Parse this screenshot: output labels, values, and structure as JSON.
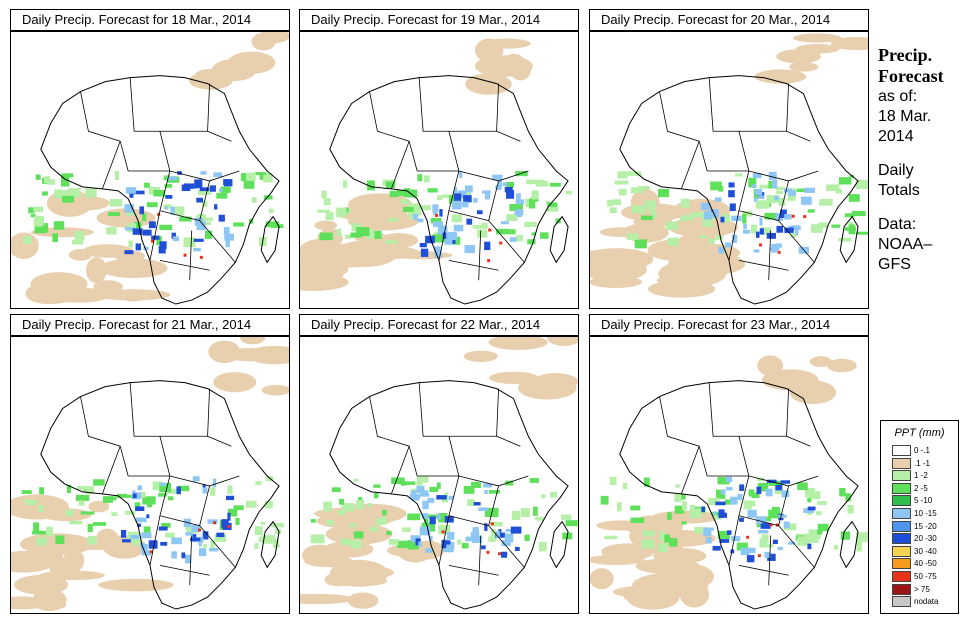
{
  "panels": [
    {
      "title": "Daily Precip. Forecast for  18 Mar., 2014",
      "variant": 0
    },
    {
      "title": "Daily Precip. Forecast for  19 Mar., 2014",
      "variant": 1
    },
    {
      "title": "Daily Precip. Forecast for  20 Mar., 2014",
      "variant": 2
    },
    {
      "title": "Daily Precip. Forecast for  21 Mar., 2014",
      "variant": 3
    },
    {
      "title": "Daily Precip. Forecast for  22 Mar., 2014",
      "variant": 4
    },
    {
      "title": "Daily Precip. Forecast for  23 Mar., 2014",
      "variant": 5
    }
  ],
  "sidebar": {
    "heading_line1": "Precip.",
    "heading_line2": "Forecast",
    "asof_line1": "as of:",
    "asof_line2": "18 Mar.",
    "asof_line3": "2014",
    "totals_line1": "Daily",
    "totals_line2": "Totals",
    "data_line1": "Data:",
    "data_line2": "NOAA–",
    "data_line3": "GFS"
  },
  "legend": {
    "title": "PPT (mm)",
    "items": [
      {
        "label": "0 -.1",
        "color": "#ffffff"
      },
      {
        "label": ".1 -1",
        "color": "#e8cfae"
      },
      {
        "label": "1 -2",
        "color": "#b6f0a8"
      },
      {
        "label": "2 -5",
        "color": "#5fe05a"
      },
      {
        "label": "5 -10",
        "color": "#2fbe4a"
      },
      {
        "label": "10 -15",
        "color": "#8ec7f5"
      },
      {
        "label": "15 -20",
        "color": "#4f95ee"
      },
      {
        "label": "20 -30",
        "color": "#1e4fd6"
      },
      {
        "label": "30 -40",
        "color": "#f7d352"
      },
      {
        "label": "40 -50",
        "color": "#f59a1c"
      },
      {
        "label": "50 -75",
        "color": "#e8331b"
      },
      {
        "label": "> 75",
        "color": "#9c1414"
      },
      {
        "label": "nodata",
        "color": "#c8c8c8"
      }
    ]
  },
  "map_colors": {
    "land": "#ffffff",
    "trace": "#e8cfae",
    "light": "#b6f0a8",
    "green": "#5fe05a",
    "lightblue": "#8ec7f5",
    "blue": "#1e4fd6",
    "red": "#e8331b"
  }
}
